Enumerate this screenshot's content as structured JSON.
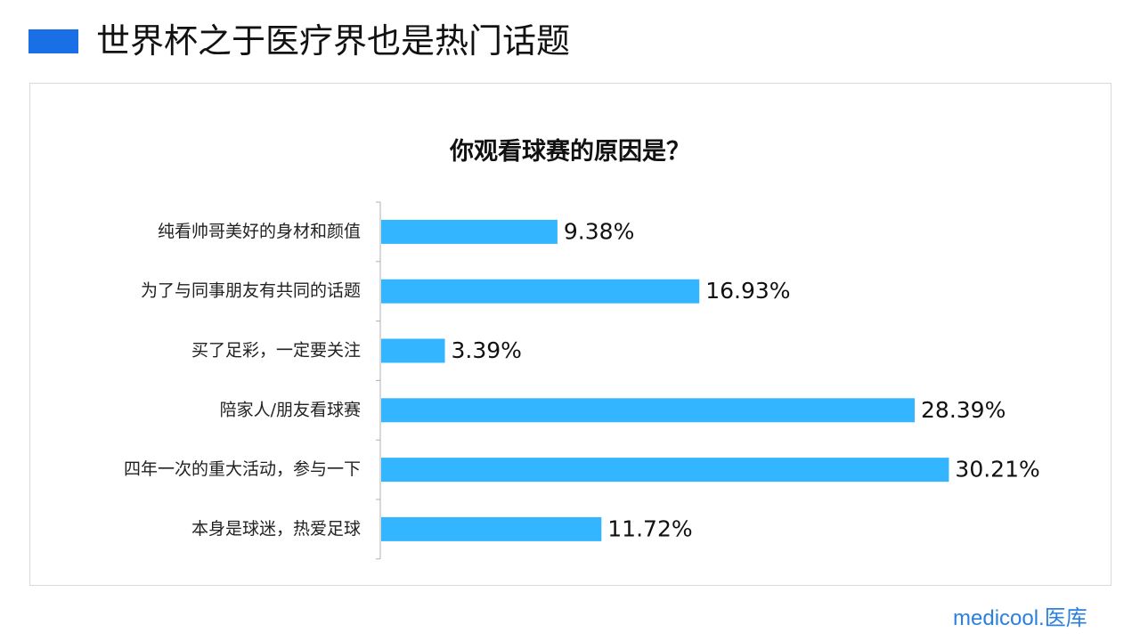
{
  "header": {
    "title": "世界杯之于医疗界也是热门话题",
    "accent_color": "#1a6fe6"
  },
  "logo": {
    "text": "medicool.医库",
    "color": "#2a7fe0"
  },
  "chart_data": {
    "type": "bar",
    "orientation": "horizontal",
    "title": "你观看球赛的原因是？",
    "xlabel": "",
    "ylabel": "",
    "categories": [
      "纯看帅哥美好的身材和颜值",
      "为了与同事朋友有共同的话题",
      "买了足彩，一定要关注",
      "陪家人/朋友看球赛",
      "四年一次的重大活动，参与一下",
      "本身是球迷，热爱足球"
    ],
    "values": [
      9.38,
      16.93,
      3.39,
      28.39,
      30.21,
      11.72
    ],
    "value_labels": [
      "9.38%",
      "16.93%",
      "3.39%",
      "28.39%",
      "30.21%",
      "11.72%"
    ],
    "unit": "%",
    "xlim": [
      0,
      32
    ],
    "bar_color": "#33b5ff",
    "grid": false,
    "legend": "none"
  }
}
